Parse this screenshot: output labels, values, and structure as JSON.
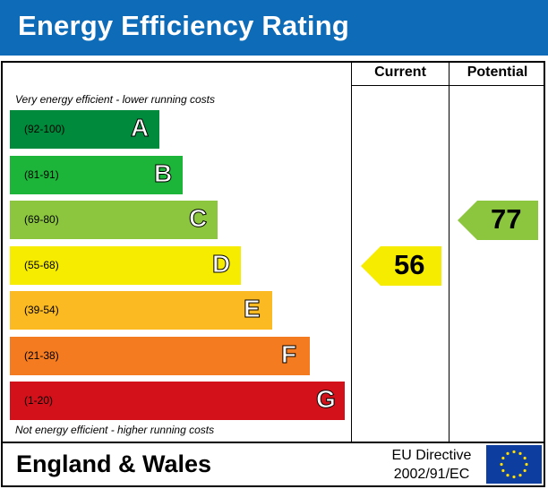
{
  "header": {
    "title": "Energy Efficiency Rating"
  },
  "columns": {
    "current": "Current",
    "potential": "Potential"
  },
  "notes": {
    "top": "Very energy efficient - lower running costs",
    "bottom": "Not energy efficient - higher running costs"
  },
  "footer": {
    "region": "England & Wales",
    "directive_line1": "EU Directive",
    "directive_line2": "2002/91/EC",
    "flag_icon": "eu-flag-icon"
  },
  "chart_data": {
    "type": "bar",
    "title": "Energy Efficiency Rating",
    "categories": [
      "A",
      "B",
      "C",
      "D",
      "E",
      "F",
      "G"
    ],
    "bands": [
      {
        "letter": "A",
        "range": "(92-100)",
        "color": "#008a3c"
      },
      {
        "letter": "B",
        "range": "(81-91)",
        "color": "#1cb53a"
      },
      {
        "letter": "C",
        "range": "(69-80)",
        "color": "#8cc63f"
      },
      {
        "letter": "D",
        "range": "(55-68)",
        "color": "#f5ec00"
      },
      {
        "letter": "E",
        "range": "(39-54)",
        "color": "#fcba22"
      },
      {
        "letter": "F",
        "range": "(21-38)",
        "color": "#f47b20"
      },
      {
        "letter": "G",
        "range": "(1-20)",
        "color": "#d3111b"
      }
    ],
    "current": {
      "value": 56,
      "band": "D",
      "color": "#f5ec00"
    },
    "potential": {
      "value": 77,
      "band": "C",
      "color": "#8cc63f"
    }
  }
}
